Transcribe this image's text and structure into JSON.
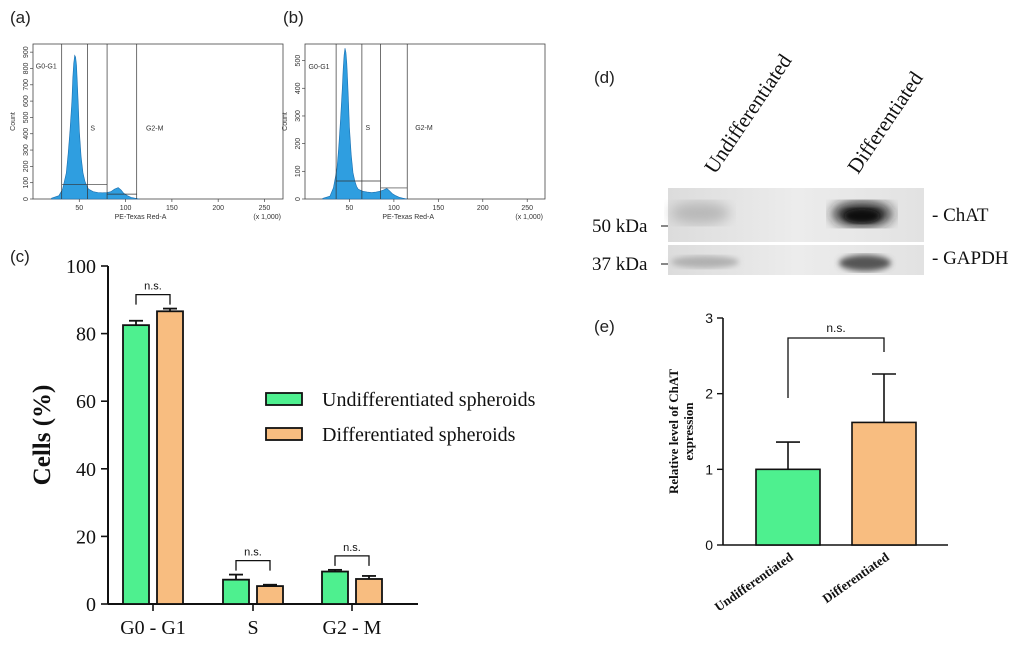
{
  "colors": {
    "green": "#4ef08f",
    "orange": "#f8bd80",
    "histogram": "#2f9ee0",
    "text": "#111111"
  },
  "chart_data": [
    {
      "panel": "(a)",
      "type": "area",
      "xlabel": "PE-Texas Red-A",
      "xscale_note": "(x 1,000)",
      "ylabel": "Count",
      "xticks": [
        "50",
        "100",
        "150",
        "200",
        "250"
      ],
      "yticks": [
        "0",
        "100",
        "200",
        "300",
        "400",
        "500",
        "600",
        "700",
        "800",
        "900"
      ],
      "xlim": [
        0,
        270
      ],
      "ylim": [
        0,
        950
      ],
      "gates": [
        "G0-G1",
        "S",
        "G2-M"
      ],
      "x": [
        20,
        28,
        32,
        36,
        38,
        40,
        42,
        43,
        44,
        45,
        46,
        47,
        48,
        49,
        50,
        52,
        54,
        56,
        58,
        60,
        65,
        70,
        75,
        80,
        84,
        88,
        92,
        95,
        98,
        102,
        106,
        110,
        115
      ],
      "y": [
        5,
        20,
        60,
        160,
        280,
        420,
        600,
        740,
        830,
        880,
        870,
        820,
        700,
        560,
        420,
        260,
        160,
        110,
        80,
        60,
        45,
        40,
        38,
        40,
        45,
        60,
        70,
        55,
        35,
        20,
        10,
        5,
        0
      ]
    },
    {
      "panel": "(b)",
      "type": "area",
      "xlabel": "PE-Texas Red-A",
      "xscale_note": "(x 1,000)",
      "ylabel": "Count",
      "xticks": [
        "50",
        "100",
        "150",
        "200",
        "250"
      ],
      "yticks": [
        "0",
        "100",
        "200",
        "300",
        "400",
        "500"
      ],
      "xlim": [
        0,
        270
      ],
      "ylim": [
        0,
        560
      ],
      "gates": [
        "G0-G1",
        "S",
        "G2-M"
      ],
      "x": [
        20,
        28,
        32,
        36,
        38,
        40,
        42,
        43,
        44,
        45,
        46,
        47,
        48,
        49,
        50,
        52,
        54,
        56,
        58,
        60,
        65,
        70,
        75,
        80,
        84,
        88,
        92,
        95,
        98,
        102,
        106,
        110,
        115
      ],
      "y": [
        2,
        10,
        40,
        110,
        190,
        290,
        400,
        470,
        520,
        545,
        530,
        490,
        420,
        340,
        260,
        160,
        95,
        65,
        45,
        35,
        28,
        25,
        23,
        25,
        28,
        32,
        38,
        30,
        20,
        12,
        6,
        3,
        0
      ]
    },
    {
      "panel": "(c)",
      "type": "bar",
      "categories": [
        "G0 - G1",
        "S",
        "G2 - M"
      ],
      "ylabel": "Cells  (%)",
      "ylim": [
        0,
        100
      ],
      "yticks": [
        "0",
        "20",
        "40",
        "60",
        "80",
        "100"
      ],
      "legend_placement": "right",
      "significance": [
        "n.s.",
        "n.s.",
        "n.s."
      ],
      "series": [
        {
          "name": "Undifferentiated spheroids",
          "values": [
            82.5,
            7.2,
            9.6
          ],
          "errors": [
            1.3,
            1.5,
            0.5
          ]
        },
        {
          "name": "Differentiated spheroids",
          "values": [
            86.6,
            5.3,
            7.4
          ],
          "errors": [
            0.8,
            0.4,
            0.9
          ]
        }
      ]
    },
    {
      "panel": "(e)",
      "type": "bar",
      "categories": [
        "Undifferentiated",
        "Differentiated"
      ],
      "ylabel": "Relative level of ChAT expression",
      "ylim": [
        0,
        3
      ],
      "yticks": [
        "0",
        "1",
        "2",
        "3"
      ],
      "significance": [
        "n.s."
      ],
      "series": [
        {
          "values": [
            1.0,
            1.62
          ],
          "errors": [
            0.36,
            0.64
          ]
        }
      ]
    }
  ],
  "blot": {
    "panel": "(d)",
    "lanes": [
      "Undifferentiated",
      "Differentiated"
    ],
    "markers": [
      "50 kDa",
      "37 kDa"
    ],
    "bands": [
      "- ChAT",
      "- GAPDH"
    ]
  }
}
